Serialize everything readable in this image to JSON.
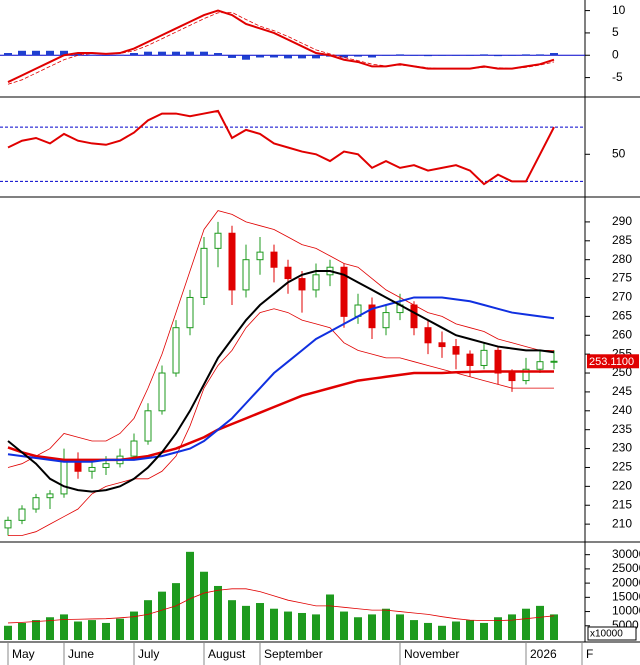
{
  "chart_data": [
    {
      "type": "line",
      "ylim": [
        -8.9,
        11.7
      ],
      "yticks": [
        10,
        5,
        0,
        -5
      ],
      "hlines": [
        0
      ],
      "hline_color": "#0000cc",
      "hline_dash": false,
      "series": [
        {
          "kind": "bar",
          "color": "#1f3fd0",
          "values": [
            0.5,
            1,
            1,
            1,
            1,
            0.5,
            0.1,
            -0.1,
            0.1,
            0.5,
            0.8,
            0.8,
            0.8,
            0.8,
            0.8,
            0.5,
            -0.6,
            -1,
            -0.5,
            -0.5,
            -0.7,
            -0.7,
            -0.7,
            -0.3,
            -0.5,
            -0.3,
            -0.5,
            -0.1,
            0.2,
            -0.1,
            -0.2,
            0,
            0,
            0,
            0.2,
            -0.2,
            0,
            0.2,
            0.2,
            0.5,
            null,
            null
          ]
        },
        {
          "kind": "line",
          "color": "#e00000",
          "width": 0.8,
          "dash": true,
          "values": [
            -6.5,
            -5.5,
            -4,
            -2.5,
            -1,
            0,
            0.4,
            0.4,
            0.4,
            1,
            2.2,
            3.7,
            5.2,
            6.7,
            8.2,
            9.5,
            9.6,
            8,
            6.5,
            5.5,
            4.2,
            2.7,
            1.2,
            0.3,
            -0.5,
            -1.2,
            -2,
            -2.4,
            -2.2,
            -2.4,
            -2.8,
            -3,
            -3,
            -3,
            -2.7,
            -2.8,
            -3,
            -2.7,
            -2.2,
            -1.5,
            null,
            null
          ]
        },
        {
          "kind": "line",
          "color": "#e00000",
          "width": 2,
          "dash": false,
          "values": [
            -6,
            -4.5,
            -3,
            -1.5,
            0,
            0.5,
            0.5,
            0.3,
            0.5,
            1.5,
            3,
            4.5,
            6,
            7.5,
            9,
            10,
            9,
            7,
            6,
            5,
            3.5,
            2,
            0.5,
            0,
            -1,
            -1.5,
            -2.5,
            -2.5,
            -2,
            -2.5,
            -3,
            -3,
            -3,
            -3,
            -2.5,
            -3,
            -3,
            -2.5,
            -2,
            -1,
            null,
            null
          ]
        }
      ]
    },
    {
      "type": "line",
      "ylim": [
        20,
        90
      ],
      "yticks": [
        50
      ],
      "hlines": [
        70,
        30
      ],
      "hline_color": "#0000cc",
      "hline_dash": true,
      "series": [
        {
          "kind": "line",
          "color": "#e00000",
          "width": 2,
          "dash": false,
          "values": [
            55,
            60,
            62,
            58,
            65,
            60,
            58,
            57,
            60,
            66,
            75,
            80,
            80,
            78,
            80,
            82,
            62,
            68,
            65,
            58,
            55,
            52,
            50,
            45,
            52,
            50,
            40,
            45,
            40,
            42,
            38,
            40,
            42,
            38,
            28,
            35,
            30,
            30,
            50,
            70,
            null,
            null
          ]
        }
      ]
    },
    {
      "type": "candlestick",
      "ylim": [
        205.8,
        295.8
      ],
      "yticks": [
        290,
        285,
        280,
        275,
        270,
        265,
        260,
        255,
        250,
        245,
        240,
        235,
        230,
        225,
        220,
        215,
        210
      ],
      "up_color": "#1e9a1e",
      "down_color": "#e00000",
      "open": [
        209,
        211,
        214,
        217,
        218,
        227,
        224,
        225,
        226,
        228,
        232,
        240,
        250,
        262,
        270,
        283,
        287,
        272,
        280,
        282,
        278,
        275,
        272,
        276,
        278,
        265,
        268,
        262,
        266,
        268,
        262,
        258,
        257,
        255,
        252,
        256,
        250,
        248,
        251,
        253,
        null,
        null
      ],
      "high": [
        212,
        215,
        218,
        219,
        230,
        229,
        227,
        228,
        230,
        234,
        242,
        252,
        264,
        272,
        286,
        290,
        289,
        284,
        286,
        284,
        280,
        277,
        279,
        280,
        279,
        271,
        270,
        268,
        271,
        269,
        264,
        261,
        259,
        256,
        258,
        257,
        251,
        254,
        256,
        256,
        null,
        null
      ],
      "low": [
        207,
        210,
        213,
        214,
        217,
        222,
        222,
        223,
        225,
        227,
        231,
        239,
        249,
        260,
        268,
        278,
        268,
        270,
        276,
        274,
        271,
        266,
        270,
        273,
        262,
        263,
        259,
        260,
        264,
        260,
        255,
        254,
        251,
        249,
        251,
        247,
        245,
        247,
        250,
        251,
        null,
        null
      ],
      "close": [
        211,
        214,
        217,
        218,
        227,
        224,
        225,
        226,
        228,
        232,
        240,
        250,
        262,
        270,
        283,
        287,
        272,
        280,
        282,
        278,
        275,
        272,
        276,
        278,
        265,
        268,
        262,
        266,
        268,
        262,
        258,
        257,
        255,
        252,
        256,
        250,
        248,
        251,
        253,
        253.11,
        null,
        null
      ],
      "last_label": {
        "value": 253.11,
        "label": "253.1100"
      },
      "series": [
        {
          "kind": "line",
          "color": "#e00000",
          "width": 0.8,
          "values": [
            225,
            226,
            228,
            230,
            234,
            233,
            232,
            232,
            234,
            238,
            246,
            255,
            266,
            277,
            288,
            293,
            292,
            290,
            289,
            288,
            286,
            284,
            283,
            281,
            279,
            278,
            275,
            272,
            270,
            268,
            266,
            265,
            263,
            262,
            261,
            259,
            258,
            257,
            256,
            256,
            null,
            null
          ]
        },
        {
          "kind": "line",
          "color": "#e00000",
          "width": 0.8,
          "values": [
            207,
            207,
            208,
            210,
            212,
            214,
            218,
            220,
            221,
            222,
            222,
            224,
            228,
            236,
            246,
            252,
            256,
            262,
            266,
            267,
            266,
            264,
            263,
            262,
            258,
            256,
            255,
            254,
            254,
            253,
            252,
            251,
            250,
            249,
            248,
            247,
            246,
            246,
            246,
            246,
            null,
            null
          ]
        },
        {
          "kind": "line",
          "color": "#e00000",
          "width": 2.5,
          "values": [
            230.3,
            229,
            228,
            227.5,
            227,
            227,
            227,
            227,
            227,
            227.5,
            228,
            229,
            230,
            231.5,
            233,
            235,
            236.5,
            238,
            239.5,
            241,
            242.5,
            244,
            245,
            246,
            247,
            248,
            248.5,
            249,
            249.5,
            250,
            250,
            250,
            250.2,
            250.3,
            250.4,
            250.4,
            250.4,
            250.4,
            250.4,
            250.4,
            null,
            null
          ]
        },
        {
          "kind": "line",
          "color": "#1030e0",
          "width": 2,
          "values": [
            228.5,
            228,
            227.5,
            227,
            226.5,
            226.5,
            226.5,
            227,
            227,
            227,
            227.5,
            228,
            229,
            230,
            232,
            235,
            238,
            242,
            246,
            250,
            253,
            256,
            259,
            261,
            263,
            265,
            267,
            268,
            269,
            270,
            270,
            270,
            269.5,
            269,
            268,
            267,
            266,
            265.5,
            265,
            264.5,
            null,
            null
          ]
        },
        {
          "kind": "line",
          "color": "#000000",
          "width": 2,
          "values": [
            232,
            229,
            226,
            222,
            220,
            219,
            218.6,
            219,
            220,
            222,
            225,
            229,
            234,
            240,
            247,
            254,
            259,
            264,
            268,
            271,
            274,
            276,
            277,
            277,
            276,
            274,
            272,
            270,
            268,
            266,
            264,
            262,
            260,
            259,
            258,
            257,
            256.5,
            256,
            256,
            255.5,
            null,
            null
          ]
        }
      ]
    },
    {
      "type": "bar",
      "ylim": [
        0,
        33400
      ],
      "yticks": [
        30000,
        25000,
        20000,
        15000,
        10000,
        5000
      ],
      "color": "#1e9a1e",
      "unit_label": "x10000",
      "categories": [
        "May",
        null,
        null,
        null,
        "June",
        null,
        null,
        null,
        null,
        "July",
        null,
        null,
        null,
        null,
        "August",
        null,
        null,
        null,
        "September",
        null,
        null,
        null,
        null,
        null,
        null,
        null,
        null,
        null,
        "November",
        null,
        null,
        null,
        null,
        null,
        null,
        null,
        null,
        "2026",
        null,
        null,
        null,
        "F"
      ],
      "values": [
        5000,
        6000,
        7000,
        8000,
        9000,
        6500,
        7000,
        6000,
        7500,
        10000,
        14000,
        17000,
        20000,
        31000,
        24000,
        19000,
        14000,
        12000,
        13000,
        11000,
        10000,
        9500,
        9000,
        16000,
        10000,
        8000,
        9000,
        11000,
        9000,
        7000,
        6000,
        5000,
        6500,
        7000,
        6000,
        8000,
        9000,
        11000,
        12000,
        9000,
        null,
        null
      ],
      "series": [
        {
          "kind": "line",
          "color": "#e00000",
          "width": 0.8,
          "values": [
            6000,
            6200,
            6500,
            6800,
            7200,
            7300,
            7400,
            7500,
            7800,
            8200,
            9000,
            10500,
            12000,
            14500,
            16500,
            17500,
            18000,
            18000,
            17000,
            15500,
            14000,
            13000,
            12000,
            12000,
            11500,
            11000,
            10500,
            10500,
            10000,
            9500,
            9000,
            8200,
            7500,
            7000,
            6800,
            6800,
            7000,
            7500,
            8000,
            8500,
            null,
            null
          ]
        }
      ]
    }
  ]
}
